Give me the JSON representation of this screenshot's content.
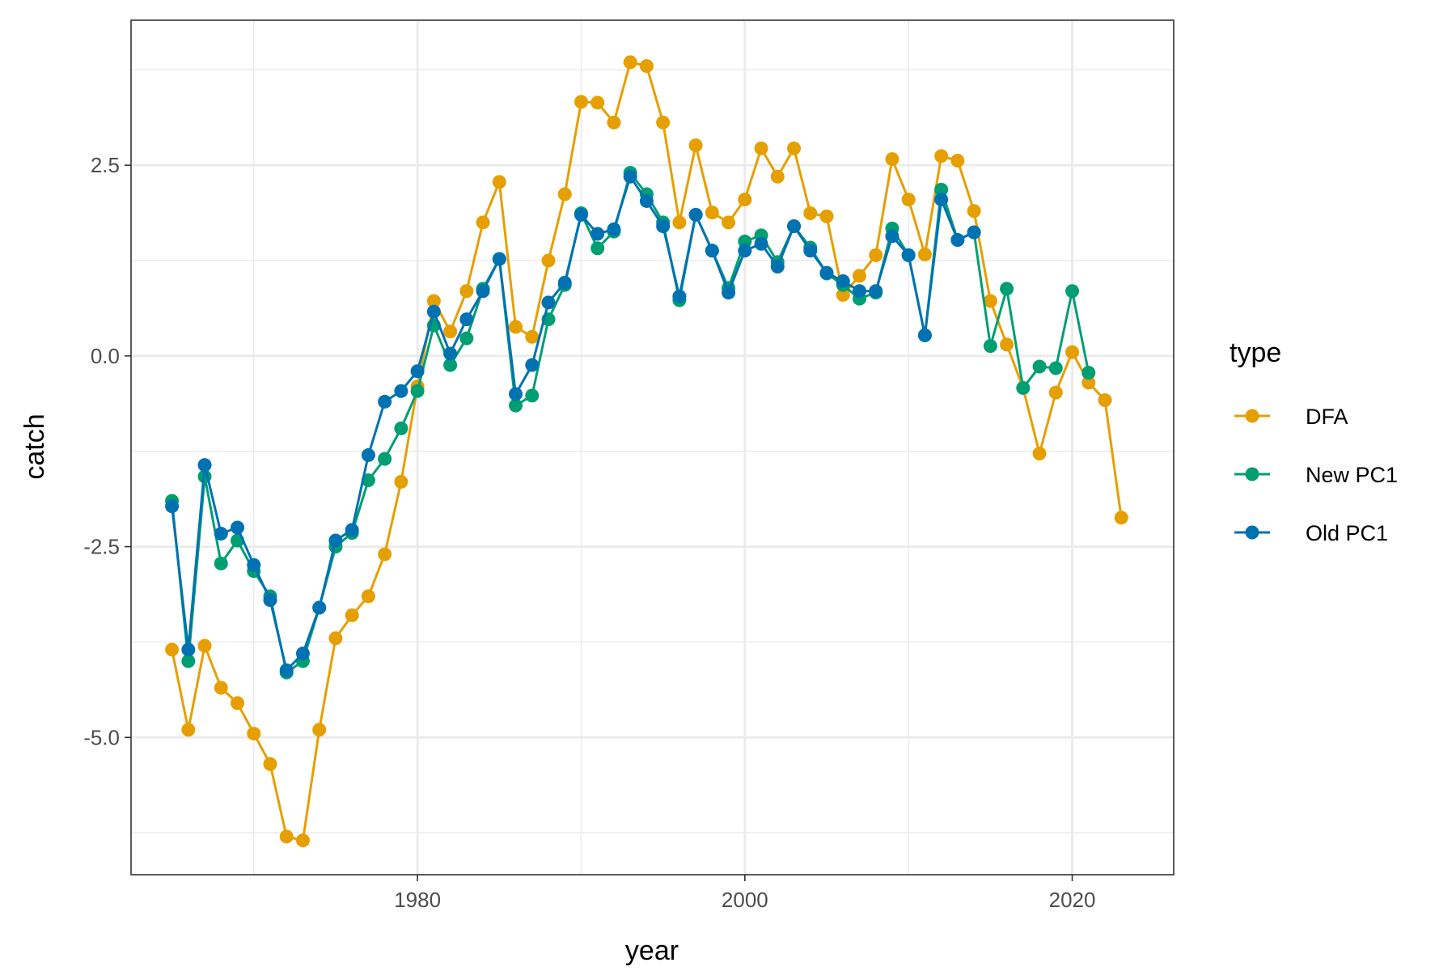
{
  "chart_data": {
    "type": "line",
    "xlabel": "year",
    "ylabel": "catch",
    "xlim": [
      1962.5,
      2026.2
    ],
    "ylim": [
      -6.8,
      4.4
    ],
    "x_ticks": [
      1980,
      2000,
      2020
    ],
    "x_tick_labels": [
      "1980",
      "2000",
      "2020"
    ],
    "x_minor_ticks": [
      1970,
      1990,
      2010
    ],
    "y_ticks": [
      -5.0,
      -2.5,
      0.0,
      2.5
    ],
    "y_tick_labels": [
      "-5.0",
      "-2.5",
      "0.0",
      "2.5"
    ],
    "y_minor_ticks": [
      -6.25,
      -3.75,
      -1.25,
      1.25,
      3.75
    ],
    "grid": true,
    "legend": {
      "title": "type",
      "position": "right"
    },
    "series": [
      {
        "name": "DFA",
        "color": "#E69F00",
        "x": [
          1965,
          1966,
          1967,
          1968,
          1969,
          1970,
          1971,
          1972,
          1973,
          1974,
          1975,
          1976,
          1977,
          1978,
          1979,
          1980,
          1981,
          1982,
          1983,
          1984,
          1985,
          1986,
          1987,
          1988,
          1989,
          1990,
          1991,
          1992,
          1993,
          1994,
          1995,
          1996,
          1997,
          1998,
          1999,
          2000,
          2001,
          2002,
          2003,
          2004,
          2005,
          2006,
          2007,
          2008,
          2009,
          2010,
          2011,
          2012,
          2013,
          2014,
          2015,
          2016,
          2017,
          2018,
          2019,
          2020,
          2021,
          2022,
          2023
        ],
        "values": [
          -3.85,
          -4.9,
          -3.8,
          -4.35,
          -4.55,
          -4.95,
          -5.35,
          -6.3,
          -6.35,
          -4.9,
          -3.7,
          -3.4,
          -3.15,
          -2.6,
          -1.65,
          -0.4,
          0.72,
          0.32,
          0.85,
          1.75,
          2.28,
          0.38,
          0.25,
          1.25,
          2.12,
          3.33,
          3.32,
          3.06,
          3.85,
          3.8,
          3.06,
          1.75,
          2.76,
          1.88,
          1.75,
          2.05,
          2.72,
          2.35,
          2.72,
          1.87,
          1.83,
          0.8,
          1.05,
          1.32,
          2.58,
          2.05,
          1.33,
          2.62,
          2.56,
          1.9,
          0.72,
          0.15,
          -0.42,
          -1.28,
          -0.48,
          0.05,
          -0.35,
          -0.58,
          -2.12
        ]
      },
      {
        "name": "New PC1",
        "color": "#009E73",
        "x": [
          1965,
          1966,
          1967,
          1968,
          1969,
          1970,
          1971,
          1972,
          1973,
          1974,
          1975,
          1976,
          1977,
          1978,
          1979,
          1980,
          1981,
          1982,
          1983,
          1984,
          1985,
          1986,
          1987,
          1988,
          1989,
          1990,
          1991,
          1992,
          1993,
          1994,
          1995,
          1996,
          1997,
          1998,
          1999,
          2000,
          2001,
          2002,
          2003,
          2004,
          2005,
          2006,
          2007,
          2008,
          2009,
          2010,
          2011,
          2012,
          2013,
          2014,
          2015,
          2016,
          2017,
          2018,
          2019,
          2020,
          2021
        ],
        "values": [
          -1.9,
          -4.0,
          -1.58,
          -2.72,
          -2.42,
          -2.82,
          -3.15,
          -4.15,
          -4.0,
          -3.3,
          -2.5,
          -2.32,
          -1.63,
          -1.35,
          -0.95,
          -0.46,
          0.4,
          -0.12,
          0.23,
          0.88,
          1.27,
          -0.65,
          -0.52,
          0.48,
          0.93,
          1.87,
          1.41,
          1.63,
          2.4,
          2.12,
          1.75,
          0.73,
          1.85,
          1.38,
          0.89,
          1.5,
          1.58,
          1.23,
          1.7,
          1.42,
          1.08,
          0.93,
          0.75,
          0.83,
          1.67,
          1.32,
          0.27,
          2.18,
          1.52,
          1.62,
          0.13,
          0.88,
          -0.42,
          -0.14,
          -0.16,
          0.85,
          -0.22
        ]
      },
      {
        "name": "Old PC1",
        "color": "#0072B2",
        "x": [
          1965,
          1966,
          1967,
          1968,
          1969,
          1970,
          1971,
          1972,
          1973,
          1974,
          1975,
          1976,
          1977,
          1978,
          1979,
          1980,
          1981,
          1982,
          1983,
          1984,
          1985,
          1986,
          1987,
          1988,
          1989,
          1990,
          1991,
          1992,
          1993,
          1994,
          1995,
          1996,
          1997,
          1998,
          1999,
          2000,
          2001,
          2002,
          2003,
          2004,
          2005,
          2006,
          2007,
          2008,
          2009,
          2010,
          2011,
          2012,
          2013,
          2014
        ],
        "values": [
          -1.97,
          -3.85,
          -1.43,
          -2.33,
          -2.25,
          -2.74,
          -3.2,
          -4.12,
          -3.9,
          -3.3,
          -2.42,
          -2.28,
          -1.3,
          -0.6,
          -0.46,
          -0.2,
          0.58,
          0.03,
          0.48,
          0.85,
          1.27,
          -0.5,
          -0.12,
          0.7,
          0.96,
          1.85,
          1.6,
          1.66,
          2.35,
          2.03,
          1.7,
          0.78,
          1.85,
          1.38,
          0.83,
          1.38,
          1.47,
          1.17,
          1.7,
          1.38,
          1.09,
          0.98,
          0.85,
          0.85,
          1.57,
          1.32,
          0.27,
          2.05,
          1.52,
          1.62
        ]
      }
    ]
  }
}
